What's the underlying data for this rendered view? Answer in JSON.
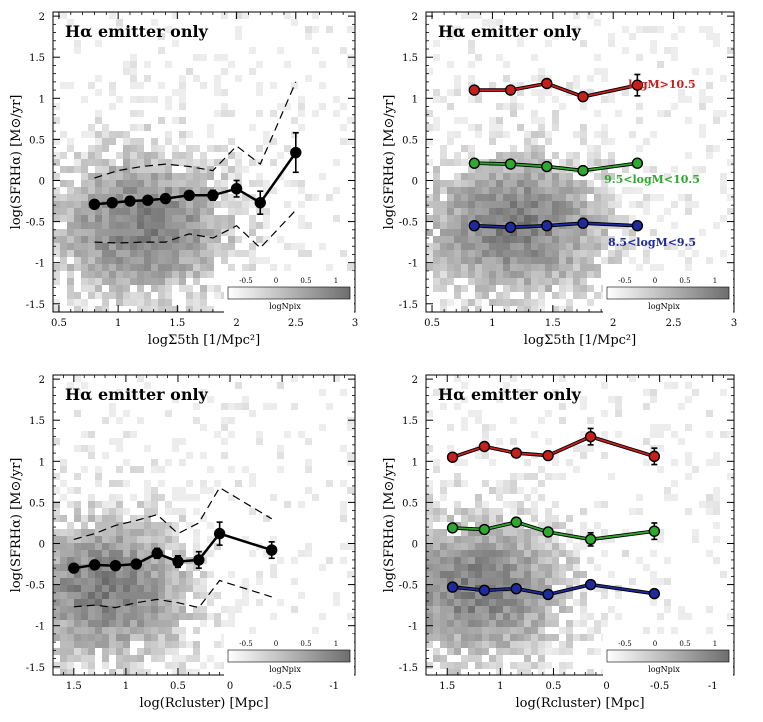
{
  "colors": {
    "low_mass": "#1f2a9c",
    "mid_mass": "#2fa82f",
    "high_mass": "#c81e1e",
    "all": "#000000"
  },
  "chart_data": [
    {
      "type": "line",
      "title": "Hα emitter only",
      "xlabel": "logΣ5th [1/Mpc²]",
      "ylabel": "log(SFRHα) [M⊙/yr]",
      "xlim": [
        0.45,
        3.0
      ],
      "ylim": [
        -1.6,
        2.05
      ],
      "xticks": [
        0.5,
        1,
        1.5,
        2,
        2.5,
        3
      ],
      "xtick_labels": [
        "0.5",
        "1",
        "1.5",
        "2",
        "2.5",
        "3"
      ],
      "yticks": [
        -1.5,
        -1,
        -0.5,
        0,
        0.5,
        1,
        1.5,
        2
      ],
      "ytick_labels": [
        "-1.5",
        "-1",
        "-0.5",
        "0",
        "0.5",
        "1",
        "1.5",
        "2"
      ],
      "background": "2D histogram of Hα emitters (grey scale = logNpix)",
      "colorbar": {
        "label": "logNpix",
        "ticks": [
          "-0.5",
          "0",
          "0.5",
          "1"
        ]
      },
      "series": [
        {
          "style": "solid-markers",
          "color": "#000000",
          "x": [
            0.8,
            0.95,
            1.1,
            1.25,
            1.4,
            1.6,
            1.8,
            2.0,
            2.2,
            2.5
          ],
          "y": [
            -0.29,
            -0.27,
            -0.25,
            -0.24,
            -0.22,
            -0.18,
            -0.18,
            -0.1,
            -0.27,
            0.34
          ],
          "err": [
            0,
            0,
            0,
            0,
            0,
            0.04,
            0.06,
            0.1,
            0.14,
            0.24
          ]
        },
        {
          "style": "dashed",
          "color": "#000000",
          "x": [
            0.8,
            1.0,
            1.2,
            1.4,
            1.6,
            1.8,
            2.0,
            2.2,
            2.5
          ],
          "y": [
            0.03,
            0.12,
            0.17,
            0.2,
            0.17,
            0.12,
            0.42,
            0.2,
            1.2
          ]
        },
        {
          "style": "dashed",
          "color": "#000000",
          "x": [
            0.8,
            1.0,
            1.2,
            1.4,
            1.6,
            1.8,
            2.0,
            2.2,
            2.5
          ],
          "y": [
            -0.75,
            -0.76,
            -0.75,
            -0.75,
            -0.65,
            -0.7,
            -0.55,
            -0.82,
            -0.36
          ]
        }
      ]
    },
    {
      "type": "line",
      "title": "Hα emitter only",
      "xlabel": "logΣ5th [1/Mpc²]",
      "ylabel": "log(SFRHα) [M⊙/yr]",
      "xlim": [
        0.45,
        3.0
      ],
      "ylim": [
        -1.6,
        2.05
      ],
      "xticks": [
        0.5,
        1,
        1.5,
        2,
        2.5,
        3
      ],
      "xtick_labels": [
        "0.5",
        "1",
        "1.5",
        "2",
        "2.5",
        "3"
      ],
      "yticks": [
        -1.5,
        -1,
        -0.5,
        0,
        0.5,
        1,
        1.5,
        2
      ],
      "ytick_labels": [
        "-1.5",
        "-1",
        "-0.5",
        "0",
        "0.5",
        "1",
        "1.5",
        "2"
      ],
      "background": "2D histogram of Hα emitters (grey scale = logNpix)",
      "colorbar": {
        "label": "logNpix",
        "ticks": [
          "-0.5",
          "0",
          "0.5",
          "1"
        ]
      },
      "series": [
        {
          "name": "logM>10.5",
          "color": "#c81e1e",
          "x": [
            0.85,
            1.15,
            1.45,
            1.75,
            2.2
          ],
          "y": [
            1.1,
            1.1,
            1.18,
            1.02,
            1.16
          ],
          "err": [
            0,
            0,
            0,
            0,
            0.13
          ]
        },
        {
          "name": "9.5<logM<10.5",
          "color": "#2fa82f",
          "x": [
            0.85,
            1.15,
            1.45,
            1.75,
            2.2
          ],
          "y": [
            0.21,
            0.2,
            0.17,
            0.12,
            0.21
          ],
          "err": [
            0,
            0,
            0,
            0,
            0
          ]
        },
        {
          "name": "8.5<logM<9.5",
          "color": "#1f2a9c",
          "x": [
            0.85,
            1.15,
            1.45,
            1.75,
            2.2
          ],
          "y": [
            -0.55,
            -0.57,
            -0.55,
            -0.52,
            -0.55
          ],
          "err": [
            0,
            0,
            0,
            0,
            0
          ]
        }
      ]
    },
    {
      "type": "line",
      "title": "Hα emitter only",
      "xlabel": "log(Rcluster) [Mpc]",
      "ylabel": "log(SFRHα) [M⊙/yr]",
      "xlim": [
        1.7,
        -1.2
      ],
      "ylim": [
        -1.6,
        2.05
      ],
      "xticks": [
        1.5,
        1,
        0.5,
        0,
        -0.5,
        -1
      ],
      "xtick_labels": [
        "1.5",
        "1",
        "0.5",
        "0",
        "-0.5",
        "-1"
      ],
      "yticks": [
        -1.5,
        -1,
        -0.5,
        0,
        0.5,
        1,
        1.5,
        2
      ],
      "ytick_labels": [
        "-1.5",
        "-1",
        "-0.5",
        "0",
        "0.5",
        "1",
        "1.5",
        "2"
      ],
      "background": "2D histogram of Hα emitters (grey scale = logNpix)",
      "colorbar": {
        "label": "logNpix",
        "ticks": [
          "-0.5",
          "0",
          "0.5",
          "1"
        ]
      },
      "series": [
        {
          "style": "solid-markers",
          "color": "#000000",
          "x": [
            1.5,
            1.3,
            1.1,
            0.9,
            0.7,
            0.5,
            0.3,
            0.1,
            -0.4
          ],
          "y": [
            -0.3,
            -0.26,
            -0.27,
            -0.25,
            -0.12,
            -0.22,
            -0.2,
            0.12,
            -0.08
          ],
          "err": [
            0,
            0,
            0,
            0,
            0.06,
            0.07,
            0.1,
            0.14,
            0.1
          ]
        },
        {
          "style": "dashed",
          "color": "#000000",
          "x": [
            1.5,
            1.3,
            1.1,
            0.9,
            0.7,
            0.5,
            0.3,
            0.1,
            -0.4
          ],
          "y": [
            0.05,
            0.12,
            0.22,
            0.28,
            0.35,
            0.12,
            0.25,
            0.68,
            0.3
          ]
        },
        {
          "style": "dashed",
          "color": "#000000",
          "x": [
            1.5,
            1.3,
            1.1,
            0.9,
            0.7,
            0.5,
            0.3,
            0.1,
            -0.4
          ],
          "y": [
            -0.77,
            -0.75,
            -0.78,
            -0.72,
            -0.68,
            -0.72,
            -0.78,
            -0.45,
            -0.65
          ]
        }
      ]
    },
    {
      "type": "line",
      "title": "Hα emitter only",
      "xlabel": "log(Rcluster) [Mpc]",
      "ylabel": "log(SFRHα) [M⊙/yr]",
      "xlim": [
        1.7,
        -1.2
      ],
      "ylim": [
        -1.6,
        2.05
      ],
      "xticks": [
        1.5,
        1,
        0.5,
        0,
        -0.5,
        -1
      ],
      "xtick_labels": [
        "1.5",
        "1",
        "0.5",
        "0",
        "-0.5",
        "-1"
      ],
      "yticks": [
        -1.5,
        -1,
        -0.5,
        0,
        0.5,
        1,
        1.5,
        2
      ],
      "ytick_labels": [
        "-1.5",
        "-1",
        "-0.5",
        "0",
        "0.5",
        "1",
        "1.5",
        "2"
      ],
      "background": "2D histogram of Hα emitters (grey scale = logNpix)",
      "colorbar": {
        "label": "logNpix",
        "ticks": [
          "-0.5",
          "0",
          "0.5",
          "1"
        ]
      },
      "series": [
        {
          "color": "#c81e1e",
          "x": [
            1.45,
            1.15,
            0.85,
            0.55,
            0.15,
            -0.45
          ],
          "y": [
            1.05,
            1.18,
            1.1,
            1.07,
            1.3,
            1.06
          ],
          "err": [
            0,
            0,
            0,
            0,
            0.1,
            0.1
          ]
        },
        {
          "color": "#2fa82f",
          "x": [
            1.45,
            1.15,
            0.85,
            0.55,
            0.15,
            -0.45
          ],
          "y": [
            0.19,
            0.17,
            0.26,
            0.14,
            0.05,
            0.15
          ],
          "err": [
            0,
            0,
            0,
            0,
            0.08,
            0.1
          ]
        },
        {
          "color": "#1f2a9c",
          "x": [
            1.45,
            1.15,
            0.85,
            0.55,
            0.15,
            -0.45
          ],
          "y": [
            -0.53,
            -0.57,
            -0.55,
            -0.62,
            -0.5,
            -0.61
          ],
          "err": [
            0,
            0,
            0,
            0,
            0,
            0
          ]
        }
      ]
    }
  ]
}
